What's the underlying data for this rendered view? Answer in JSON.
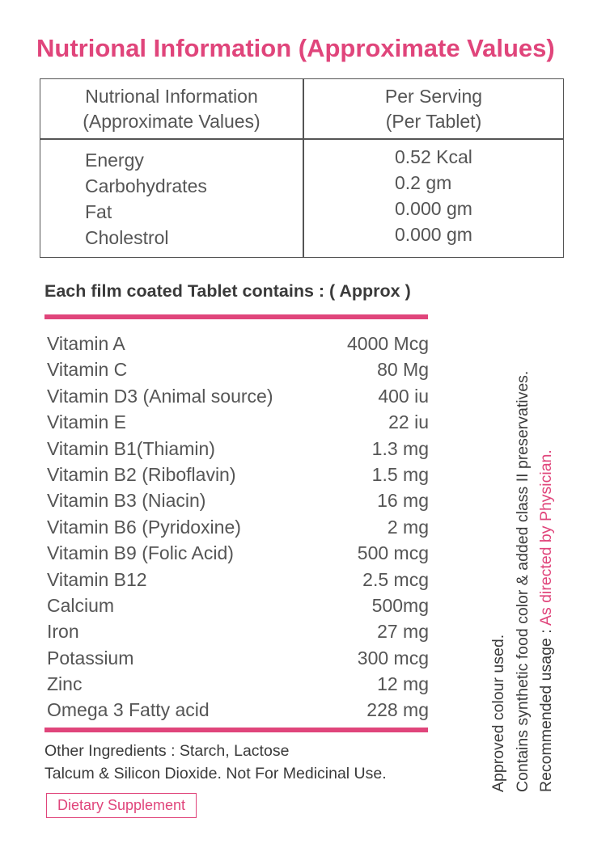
{
  "title": "Nutrional Information (Approximate Values)",
  "nutrition_table": {
    "header_left": [
      "Nutrional Information",
      "(Approximate Values)"
    ],
    "header_right": [
      "Per Serving",
      "(Per Tablet)"
    ],
    "rows": [
      {
        "name": "Energy",
        "value": "0.52 Kcal"
      },
      {
        "name": "Carbohydrates",
        "value": "0.2 gm"
      },
      {
        "name": "Fat",
        "value": "0.000 gm"
      },
      {
        "name": "Cholestrol",
        "value": "0.000 gm"
      }
    ]
  },
  "contains": {
    "title": "Each film coated Tablet contains : ( Approx )",
    "items": [
      {
        "name": "Vitamin A",
        "value": "4000 Mcg"
      },
      {
        "name": "Vitamin C",
        "value": "80 Mg"
      },
      {
        "name": "Vitamin D3 (Animal source)",
        "value": "400 iu"
      },
      {
        "name": "Vitamin  E",
        "value": "22 iu"
      },
      {
        "name": "Vitamin  B1(Thiamin)",
        "value": "1.3 mg"
      },
      {
        "name": "Vitamin B2 (Riboflavin)",
        "value": "1.5 mg"
      },
      {
        "name": "Vitamin B3 (Niacin)",
        "value": "16 mg"
      },
      {
        "name": "Vitamin B6 (Pyridoxine)",
        "value": "2 mg"
      },
      {
        "name": "Vitamin B9 (Folic Acid)",
        "value": "500 mcg"
      },
      {
        "name": "Vitamin B12",
        "value": "2.5 mcg"
      },
      {
        "name": "Calcium",
        "value": "500mg"
      },
      {
        "name": "Iron",
        "value": "27 mg"
      },
      {
        "name": "Potassium",
        "value": "300 mcg"
      },
      {
        "name": "Zinc",
        "value": "12 mg"
      },
      {
        "name": "Omega 3 Fatty acid",
        "value": "228 mg"
      }
    ]
  },
  "other_ingredients": {
    "line1": "Other Ingredients : Starch, Lactose",
    "line2": "Talcum & Silicon Dioxide. Not For Medicinal Use."
  },
  "badge": "Dietary Supplement",
  "side_text": {
    "line1": "Approved colour used.",
    "line2": "Contains synthetic food color & added class II preservatives.",
    "line3_prefix": "Recommended usage : ",
    "line3_highlight": "As directed by Physician."
  },
  "colors": {
    "accent": "#e0457b",
    "text": "#3a3a3a",
    "border": "#555555"
  }
}
